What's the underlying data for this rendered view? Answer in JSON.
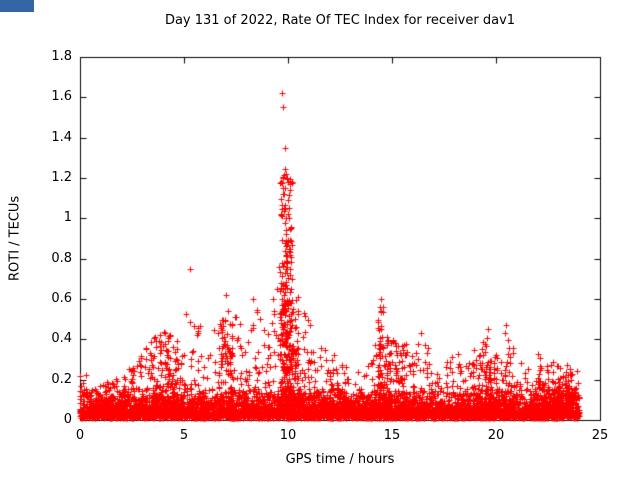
{
  "artifact": {
    "color": "#3465a4"
  },
  "chart_data": {
    "type": "scatter",
    "title": "Day 131 of 2022, Rate Of TEC Index for receiver dav1",
    "xlabel": "GPS time / hours",
    "ylabel": "ROTI / TECUs",
    "xlim": [
      0,
      25
    ],
    "ylim": [
      0,
      1.8
    ],
    "xticks": [
      "0",
      "5",
      "10",
      "15",
      "20",
      "25"
    ],
    "yticks": [
      "0",
      "0.2",
      "0.4",
      "0.6",
      "0.8",
      "1",
      "1.2",
      "1.4",
      "1.6",
      "1.8"
    ],
    "grid": false,
    "legend": "none",
    "marker": "plus",
    "marker_color": "#ff0000",
    "axis_color": "#000000",
    "data_domain": [
      0,
      24
    ],
    "baseline_band": [
      0.01,
      0.17
    ],
    "baseline_fraction": 0.72,
    "point_count": 6000,
    "seed": 131,
    "envelope": [
      [
        0,
        0.25
      ],
      [
        0.5,
        0.23
      ],
      [
        1,
        0.19
      ],
      [
        1.5,
        0.2
      ],
      [
        2,
        0.24
      ],
      [
        2.5,
        0.28
      ],
      [
        3,
        0.34
      ],
      [
        3.5,
        0.42
      ],
      [
        4,
        0.45
      ],
      [
        4.5,
        0.4
      ],
      [
        5,
        0.5
      ],
      [
        5.3,
        0.62
      ],
      [
        5.5,
        0.5
      ],
      [
        6,
        0.45
      ],
      [
        6.5,
        0.5
      ],
      [
        7,
        0.6
      ],
      [
        7.5,
        0.52
      ],
      [
        8,
        0.45
      ],
      [
        8.5,
        0.55
      ],
      [
        9,
        0.5
      ],
      [
        9.5,
        0.7
      ],
      [
        9.8,
        1.3
      ],
      [
        10,
        1.2
      ],
      [
        10.3,
        0.7
      ],
      [
        10.5,
        0.6
      ],
      [
        11,
        0.5
      ],
      [
        11.5,
        0.4
      ],
      [
        12,
        0.34
      ],
      [
        12.5,
        0.3
      ],
      [
        13,
        0.27
      ],
      [
        13.5,
        0.25
      ],
      [
        14,
        0.3
      ],
      [
        14.4,
        0.6
      ],
      [
        15,
        0.45
      ],
      [
        15.5,
        0.4
      ],
      [
        16,
        0.34
      ],
      [
        16.5,
        0.42
      ],
      [
        17,
        0.3
      ],
      [
        17.5,
        0.28
      ],
      [
        18,
        0.34
      ],
      [
        18.5,
        0.32
      ],
      [
        19,
        0.3
      ],
      [
        19.5,
        0.44
      ],
      [
        20,
        0.36
      ],
      [
        20.5,
        0.46
      ],
      [
        21,
        0.34
      ],
      [
        21.5,
        0.3
      ],
      [
        22,
        0.33
      ],
      [
        22.5,
        0.3
      ],
      [
        23,
        0.28
      ],
      [
        23.5,
        0.26
      ],
      [
        24,
        0.25
      ]
    ],
    "outliers": [
      [
        5.3,
        0.75
      ],
      [
        7.0,
        0.62
      ],
      [
        8.3,
        0.6
      ],
      [
        9.55,
        0.76
      ],
      [
        9.7,
        1.62
      ],
      [
        9.75,
        1.55
      ],
      [
        9.85,
        1.35
      ],
      [
        9.9,
        1.22
      ],
      [
        9.95,
        1.2
      ],
      [
        10.0,
        1.18
      ],
      [
        9.8,
        1.05
      ],
      [
        10.05,
        1.0
      ],
      [
        9.9,
        0.92
      ],
      [
        10.1,
        0.85
      ],
      [
        14.45,
        0.6
      ],
      [
        14.4,
        0.56
      ],
      [
        16.4,
        0.43
      ],
      [
        19.6,
        0.45
      ],
      [
        20.5,
        0.47
      ]
    ],
    "clusters": [
      {
        "x": 9.9,
        "spread": 0.3,
        "count": 220,
        "vmax": 1.25
      },
      {
        "x": 10.1,
        "spread": 0.4,
        "count": 120,
        "vmax": 0.6
      },
      {
        "x": 14.45,
        "spread": 0.15,
        "count": 70,
        "vmax": 0.58
      },
      {
        "x": 7.0,
        "spread": 0.35,
        "count": 80,
        "vmax": 0.5
      },
      {
        "x": 4.2,
        "spread": 0.8,
        "count": 100,
        "vmax": 0.42
      },
      {
        "x": 15.2,
        "spread": 0.5,
        "count": 70,
        "vmax": 0.4
      },
      {
        "x": 19.8,
        "spread": 0.9,
        "count": 80,
        "vmax": 0.35
      },
      {
        "x": 22.9,
        "spread": 0.9,
        "count": 90,
        "vmax": 0.3
      }
    ]
  }
}
